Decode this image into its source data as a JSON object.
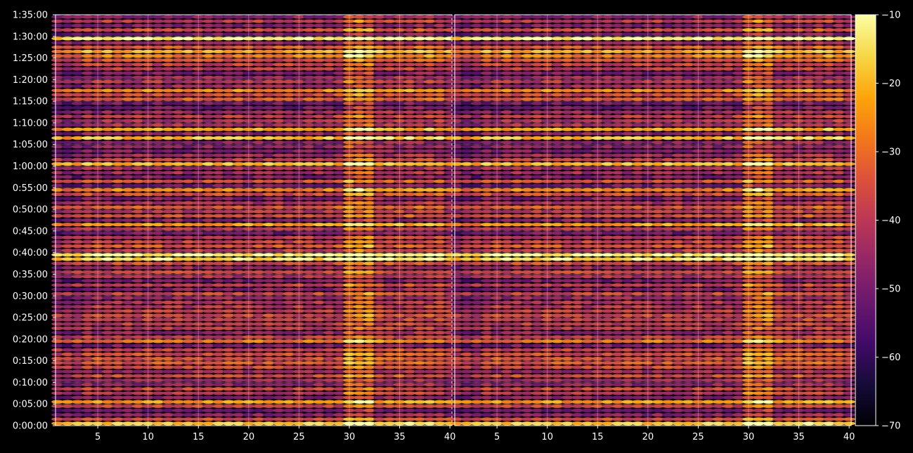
{
  "chart_data": {
    "type": "heatmap",
    "title": "",
    "colormap": "inferno",
    "background": "#000000",
    "grid": true,
    "y_axis": {
      "label": "",
      "range_seconds": [
        0,
        5700
      ],
      "tick_labels": [
        "0:00:00",
        "0:05:00",
        "0:10:00",
        "0:15:00",
        "0:20:00",
        "0:25:00",
        "0:30:00",
        "0:35:00",
        "0:40:00",
        "0:45:00",
        "0:50:00",
        "0:55:00",
        "1:00:00",
        "1:05:00",
        "1:10:00",
        "1:15:00",
        "1:20:00",
        "1:25:00",
        "1:30:00",
        "1:35:00"
      ]
    },
    "panels": [
      {
        "name": "",
        "x_range": [
          1,
          40
        ],
        "x_ticks": [
          5,
          10,
          15,
          20,
          25,
          30,
          35,
          40
        ],
        "x_tick_labels": [
          "5",
          "10",
          "15",
          "20",
          "25",
          "30",
          "35",
          "40"
        ]
      },
      {
        "name": "",
        "x_range": [
          1,
          40
        ],
        "x_ticks": [
          5,
          10,
          15,
          20,
          25,
          30,
          35,
          40
        ],
        "x_tick_labels": [
          "5",
          "10",
          "15",
          "20",
          "25",
          "30",
          "35",
          "40"
        ]
      }
    ],
    "colorbar": {
      "range": [
        -70,
        -10
      ],
      "ticks": [
        -70,
        -60,
        -50,
        -40,
        -30,
        -20,
        -10
      ],
      "tick_labels": [
        "−70",
        "−60",
        "−50",
        "−40",
        "−30",
        "−20",
        "−10"
      ]
    },
    "bright_rows_time": [
      "0:00:30",
      "0:05:30",
      "0:19:30",
      "0:39:00",
      "0:46:30",
      "0:54:30",
      "1:00:30",
      "1:06:30",
      "1:08:30",
      "1:17:30",
      "1:26:00",
      "1:29:30"
    ],
    "bright_columns_x": [
      30,
      31,
      32
    ]
  }
}
